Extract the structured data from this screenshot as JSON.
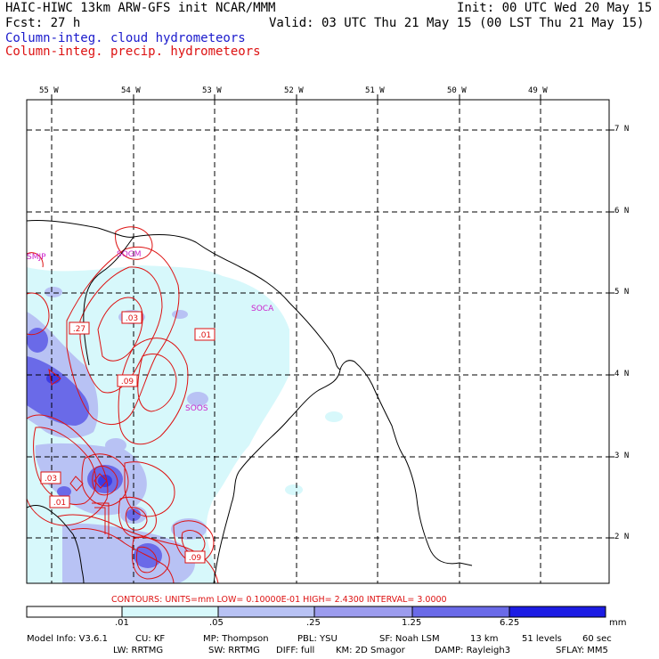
{
  "header": {
    "title": "HAIC-HIWC 13km ARW-GFS init   NCAR/MMM",
    "init": "Init: 00 UTC Wed 20 May 15",
    "fcst": "Fcst:   27 h",
    "valid": "Valid: 03 UTC Thu 21 May 15 (00 LST Thu 21 May 15)",
    "field1": "Column-integ. cloud hydrometeors",
    "field2": "Column-integ. precip. hydrometeors"
  },
  "map": {
    "lon_labels": [
      "55 W",
      "54 W",
      "53 W",
      "52 W",
      "51 W",
      "50 W",
      "49 W"
    ],
    "lat_labels": [
      "7 N",
      "6 N",
      "5 N",
      "4 N",
      "3 N",
      "2 N"
    ],
    "stations": [
      "SMJP",
      "SOGM",
      "SOCA",
      "SOOS"
    ],
    "contour_labels": [
      ".27",
      ".03",
      ".01",
      ".09",
      ".03",
      ".01",
      ".09"
    ]
  },
  "contours_line": {
    "label": "CONTOURS:",
    "units": "UNITS=mm",
    "low": "LOW= 0.10000E-01",
    "high": "HIGH=   2.4300",
    "interval": "INTERVAL= 3.0000"
  },
  "colorbar": {
    "labels": [
      ".01",
      ".05",
      ".25",
      "1.25",
      "6.25"
    ],
    "unit": "mm",
    "colors": [
      "#ffffff",
      "#d7f8fb",
      "#b8c2f4",
      "#9c9cee",
      "#6a6ae8",
      "#3c3ce4",
      "#1c1ce4"
    ]
  },
  "footer": {
    "line1": [
      "Model Info: V3.6.1",
      "CU: KF",
      "MP: Thompson",
      "PBL: YSU",
      "SF: Noah LSM",
      "13 km",
      "51 levels",
      "60 sec"
    ],
    "line2": [
      "LW: RRTMG",
      "SW: RRTMG",
      "DIFF: full",
      "KM: 2D Smagor",
      "DAMP: Rayleigh3",
      "SFLAY: MM5"
    ]
  }
}
